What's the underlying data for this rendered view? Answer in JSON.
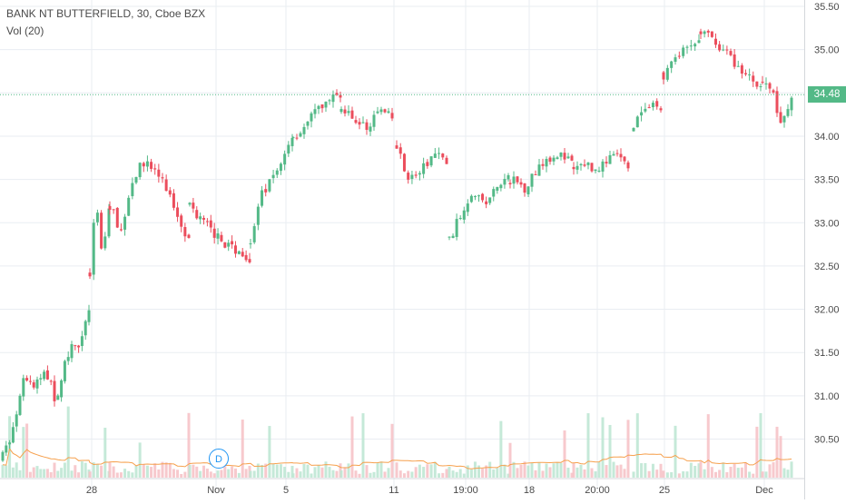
{
  "chart_data": {
    "type": "candlestick",
    "title": "BANK NT BUTTERFIELD, 30, Cboe BZX",
    "indicator": "Vol (20)",
    "last_price_label": "34.48",
    "last_price": 34.48,
    "ylim": [
      30.2,
      35.6
    ],
    "y_ticks": [
      "35.50",
      "35.00",
      "34.50",
      "34.00",
      "33.50",
      "33.00",
      "32.50",
      "32.00",
      "31.50",
      "31.00",
      "30.50"
    ],
    "x_ticks": [
      "28",
      "Nov",
      "5",
      "11",
      "19:00",
      "18",
      "20:00",
      "25",
      "Dec"
    ],
    "grid": true,
    "event_badge": "D",
    "colors": {
      "up": "#53b987",
      "down": "#eb4d5c",
      "vol_ma": "#f6a04d",
      "grid": "#e9edf2",
      "axis_text": "#4a4a4a"
    },
    "segments": [
      {
        "x0": 3,
        "x1": 98,
        "n": 26,
        "p": [
          30.3,
          30.6,
          31.2,
          31.1,
          31.3,
          30.9,
          31.5,
          31.6,
          32.0
        ]
      },
      {
        "x0": 99,
        "x1": 120,
        "n": 6,
        "p": [
          32.4,
          33.3,
          32.6,
          33.2
        ]
      },
      {
        "x0": 121,
        "x1": 208,
        "n": 22,
        "p": [
          33.2,
          32.9,
          33.5,
          33.7,
          33.6,
          33.4,
          33.1,
          32.8
        ]
      },
      {
        "x0": 209,
        "x1": 275,
        "n": 18,
        "p": [
          33.2,
          33.0,
          32.8,
          32.7,
          32.6
        ]
      },
      {
        "x0": 276,
        "x1": 322,
        "n": 12,
        "p": [
          32.8,
          33.3,
          33.5,
          33.7,
          34.0
        ]
      },
      {
        "x0": 323,
        "x1": 375,
        "n": 14,
        "p": [
          34.0,
          34.1,
          34.3,
          34.4,
          34.5
        ]
      },
      {
        "x0": 376,
        "x1": 432,
        "n": 15,
        "p": [
          34.3,
          34.2,
          34.1,
          34.3,
          34.2
        ]
      },
      {
        "x0": 437,
        "x1": 492,
        "n": 14,
        "p": [
          33.9,
          33.5,
          33.6,
          33.8,
          33.7
        ]
      },
      {
        "x0": 495,
        "x1": 560,
        "n": 17,
        "p": [
          32.8,
          33.1,
          33.4,
          33.2,
          33.4,
          33.5
        ]
      },
      {
        "x0": 562,
        "x1": 630,
        "n": 18,
        "p": [
          33.5,
          33.4,
          33.7,
          33.8,
          33.7
        ]
      },
      {
        "x0": 632,
        "x1": 692,
        "n": 16,
        "p": [
          33.6,
          33.7,
          33.6,
          33.7,
          33.8,
          33.6
        ]
      },
      {
        "x0": 698,
        "x1": 728,
        "n": 8,
        "p": [
          34.1,
          34.3,
          34.35,
          34.3
        ]
      },
      {
        "x0": 731,
        "x1": 770,
        "n": 10,
        "p": [
          34.7,
          34.9,
          35.0,
          35.1
        ]
      },
      {
        "x0": 772,
        "x1": 838,
        "n": 17,
        "p": [
          35.2,
          35.1,
          34.9,
          34.7,
          34.6
        ]
      },
      {
        "x0": 840,
        "x1": 872,
        "n": 9,
        "p": [
          34.6,
          34.55,
          34.1,
          34.48
        ]
      }
    ]
  }
}
